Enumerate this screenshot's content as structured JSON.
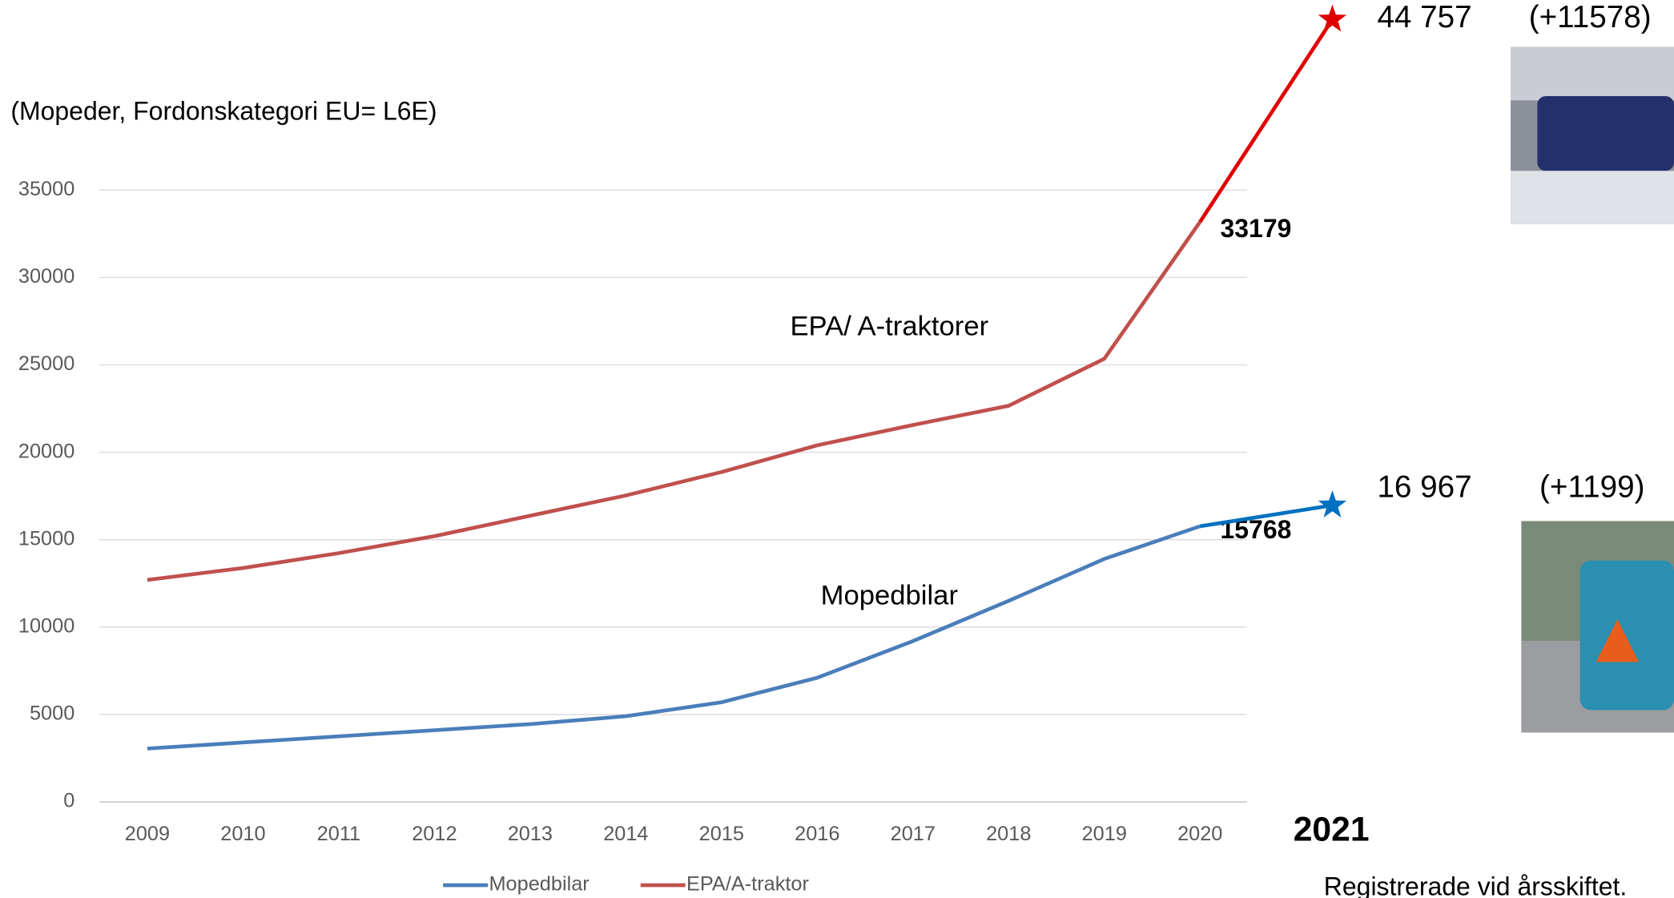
{
  "chart_data": {
    "type": "line",
    "subtitle": "(Mopeder, Fordonskategori EU= L6E)",
    "categories": [
      "2009",
      "2010",
      "2011",
      "2012",
      "2013",
      "2014",
      "2015",
      "2016",
      "2017",
      "2018",
      "2019",
      "2020"
    ],
    "series": [
      {
        "name": "Mopedbilar",
        "color": "#4a7ebb",
        "values": [
          3050,
          3400,
          3750,
          4100,
          4450,
          4900,
          5700,
          7100,
          9200,
          11500,
          13900,
          15768
        ]
      },
      {
        "name": "EPA/A-traktor",
        "color": "#c0504d",
        "values": [
          12700,
          13380,
          14230,
          15200,
          16370,
          17530,
          18870,
          20400,
          21560,
          22660,
          25350,
          33179
        ]
      }
    ],
    "ylim": [
      0,
      35000
    ],
    "yticks": [
      0,
      5000,
      10000,
      15000,
      20000,
      25000,
      30000,
      35000
    ],
    "grid": true,
    "legend": "bottom",
    "annotations": [
      "Mopedbilar",
      "EPA/ A-traktorer"
    ],
    "extension": {
      "label": "2021",
      "colors": [
        "#0070c0",
        "#e00000"
      ],
      "values": [
        16967,
        44757
      ],
      "value_labels": [
        "16 967",
        "44 757"
      ],
      "changes": [
        1199,
        11578
      ],
      "change_labels": [
        "(+1199)",
        "(+11578)"
      ]
    },
    "footer": "Registrerade vid årsskiftet."
  }
}
